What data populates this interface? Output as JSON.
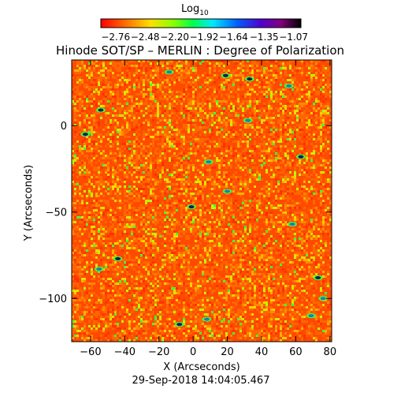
{
  "chart_data": {
    "type": "heatmap",
    "title": "Hinode SOT/SP – MERLIN : Degree of Polarization",
    "xlabel": "X (Arcseconds)",
    "ylabel": "Y (Arcseconds)",
    "timestamp": "29-Sep-2018 14:04:05.467",
    "xlim": [
      -71,
      81
    ],
    "ylim": [
      -125,
      38
    ],
    "xticks": [
      -60,
      -40,
      -20,
      0,
      20,
      40,
      60,
      80
    ],
    "yticks": [
      0,
      -50,
      -100
    ],
    "grid": false,
    "colorbar": {
      "title_base": "Log",
      "title_sub": "10",
      "range": [
        -2.9,
        -1.0
      ],
      "ticks": [
        -2.76,
        -2.48,
        -2.2,
        -1.92,
        -1.64,
        -1.35,
        -1.07
      ],
      "tick_labels": [
        "−2.76",
        "−2.48",
        "−2.20",
        "−1.92",
        "−1.64",
        "−1.35",
        "−1.07"
      ],
      "colormap": "rainbow (red → orange → yellow → green → cyan → blue → purple → black)"
    },
    "field": {
      "dominant_value": -2.72,
      "dominant_color": "#ff6600",
      "background_color": "#ff4a00",
      "network_colors": [
        "#ffd400",
        "#b6ff00",
        "#44ff3a"
      ],
      "strong_colors": [
        "#1f7fb0",
        "#002060",
        "#00e0ff"
      ],
      "strong_patches": [
        {
          "x": -14,
          "y": 31
        },
        {
          "x": 19,
          "y": 29
        },
        {
          "x": 56,
          "y": 23
        },
        {
          "x": 33,
          "y": 27
        },
        {
          "x": 32,
          "y": 3
        },
        {
          "x": -54,
          "y": 9
        },
        {
          "x": 9,
          "y": -21
        },
        {
          "x": 63,
          "y": -18
        },
        {
          "x": 20,
          "y": -38
        },
        {
          "x": -1,
          "y": -47
        },
        {
          "x": 58,
          "y": -57
        },
        {
          "x": -44,
          "y": -77
        },
        {
          "x": -55,
          "y": -83
        },
        {
          "x": 73,
          "y": -88
        },
        {
          "x": 8,
          "y": -112
        },
        {
          "x": -8,
          "y": -115
        },
        {
          "x": 69,
          "y": -110
        },
        {
          "x": -63,
          "y": -5
        },
        {
          "x": 76,
          "y": -100
        }
      ]
    }
  }
}
